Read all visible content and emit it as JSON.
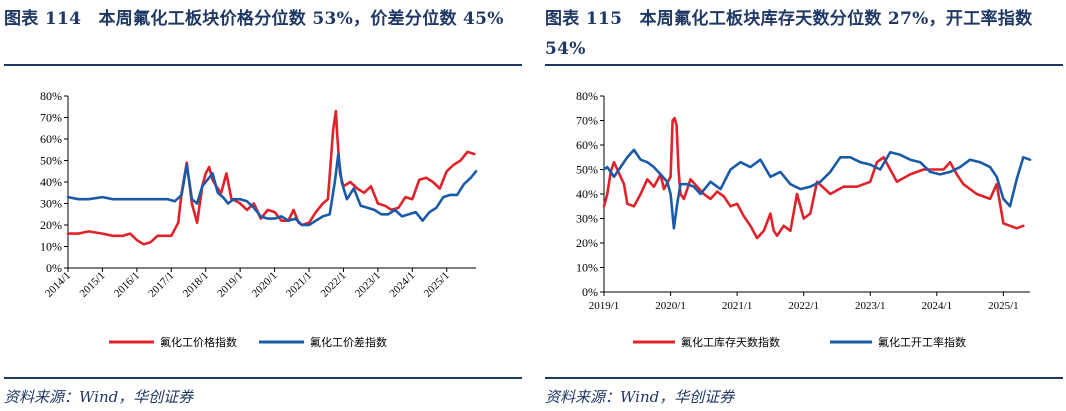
{
  "figures": [
    {
      "title": "图表 114　本周氟化工板块价格分位数 53%，价差分位数 45%",
      "source": "资料来源：Wind，华创证券"
    },
    {
      "title": "图表 115　本周氟化工板块库存天数分位数 27%，开工率指数 54%",
      "source": "资料来源：Wind，华创证券"
    }
  ],
  "chart_data": [
    {
      "type": "line",
      "title": "",
      "xlabel": "",
      "ylabel": "",
      "yticks": [
        "0%",
        "10%",
        "20%",
        "30%",
        "40%",
        "50%",
        "60%",
        "70%",
        "80%"
      ],
      "ylim": [
        0,
        80
      ],
      "xlim": [
        2014.0,
        2025.85
      ],
      "xticks": [
        "2014/1",
        "2015/1",
        "2016/1",
        "2017/1",
        "2018/1",
        "2019/1",
        "2020/1",
        "2021/1",
        "2022/1",
        "2023/1",
        "2024/1",
        "2025/1"
      ],
      "grid": false,
      "legend_position": "bottom",
      "series": [
        {
          "name": "氟化工价格指数",
          "color": "#e0222b",
          "x": [
            2014.0,
            2014.3,
            2014.6,
            2015.0,
            2015.3,
            2015.6,
            2015.8,
            2016.0,
            2016.2,
            2016.4,
            2016.6,
            2016.8,
            2017.0,
            2017.2,
            2017.3,
            2017.45,
            2017.6,
            2017.75,
            2017.9,
            2018.0,
            2018.1,
            2018.2,
            2018.3,
            2018.45,
            2018.6,
            2018.75,
            2018.9,
            2019.0,
            2019.2,
            2019.4,
            2019.6,
            2019.8,
            2020.0,
            2020.2,
            2020.4,
            2020.55,
            2020.7,
            2020.8,
            2021.0,
            2021.2,
            2021.4,
            2021.55,
            2021.7,
            2021.78,
            2021.82,
            2021.9,
            2022.0,
            2022.2,
            2022.4,
            2022.6,
            2022.8,
            2023.0,
            2023.2,
            2023.4,
            2023.6,
            2023.8,
            2024.0,
            2024.2,
            2024.4,
            2024.6,
            2024.8,
            2025.0,
            2025.2,
            2025.4,
            2025.6,
            2025.8
          ],
          "y": [
            16,
            16,
            17,
            16,
            15,
            15,
            16,
            13,
            11,
            12,
            15,
            15,
            15,
            21,
            35,
            49,
            30,
            21,
            38,
            44,
            47,
            41,
            38,
            35,
            44,
            32,
            31,
            30,
            27,
            30,
            23,
            27,
            26,
            22,
            22,
            27,
            21,
            20,
            21,
            26,
            30,
            32,
            64,
            73,
            62,
            44,
            38,
            40,
            37,
            35,
            38,
            30,
            29,
            27,
            28,
            33,
            32,
            41,
            42,
            40,
            37,
            45,
            48,
            50,
            54,
            53
          ]
        },
        {
          "name": "氟化工价差指数",
          "color": "#1a5ba8",
          "x": [
            2014.0,
            2014.3,
            2014.6,
            2015.0,
            2015.3,
            2015.6,
            2016.0,
            2016.3,
            2016.6,
            2016.9,
            2017.1,
            2017.3,
            2017.45,
            2017.6,
            2017.75,
            2017.9,
            2018.0,
            2018.2,
            2018.35,
            2018.5,
            2018.65,
            2018.8,
            2019.0,
            2019.2,
            2019.4,
            2019.6,
            2019.8,
            2020.0,
            2020.2,
            2020.4,
            2020.6,
            2020.8,
            2021.0,
            2021.2,
            2021.4,
            2021.6,
            2021.75,
            2021.85,
            2021.95,
            2022.1,
            2022.3,
            2022.5,
            2022.7,
            2022.9,
            2023.1,
            2023.3,
            2023.5,
            2023.7,
            2023.9,
            2024.1,
            2024.3,
            2024.5,
            2024.7,
            2024.9,
            2025.1,
            2025.3,
            2025.5,
            2025.7,
            2025.85
          ],
          "y": [
            33,
            32,
            32,
            33,
            32,
            32,
            32,
            32,
            32,
            32,
            31,
            34,
            48,
            32,
            30,
            38,
            40,
            44,
            35,
            33,
            30,
            32,
            32,
            31,
            28,
            24,
            23,
            23,
            24,
            22,
            23,
            20,
            20,
            22,
            24,
            25,
            40,
            53,
            40,
            32,
            37,
            29,
            28,
            27,
            25,
            25,
            27,
            24,
            25,
            26,
            22,
            26,
            28,
            33,
            34,
            34,
            39,
            42,
            45
          ]
        }
      ]
    },
    {
      "type": "line",
      "title": "",
      "xlabel": "",
      "ylabel": "",
      "yticks": [
        "0%",
        "10%",
        "20%",
        "30%",
        "40%",
        "50%",
        "60%",
        "70%",
        "80%"
      ],
      "ylim": [
        0,
        80
      ],
      "xlim": [
        2019.0,
        2025.4
      ],
      "xticks": [
        "2019/1",
        "2020/1",
        "2021/1",
        "2022/1",
        "2023/1",
        "2024/1",
        "2025/1"
      ],
      "grid": false,
      "legend_position": "bottom",
      "series": [
        {
          "name": "氟化工库存天数指数",
          "color": "#e0222b",
          "x": [
            2019.0,
            2019.05,
            2019.1,
            2019.15,
            2019.2,
            2019.3,
            2019.35,
            2019.45,
            2019.55,
            2019.65,
            2019.75,
            2019.85,
            2019.9,
            2020.0,
            2020.03,
            2020.06,
            2020.09,
            2020.12,
            2020.15,
            2020.2,
            2020.3,
            2020.4,
            2020.5,
            2020.6,
            2020.7,
            2020.8,
            2020.9,
            2021.0,
            2021.1,
            2021.2,
            2021.3,
            2021.4,
            2021.5,
            2021.55,
            2021.6,
            2021.7,
            2021.8,
            2021.9,
            2022.0,
            2022.1,
            2022.2,
            2022.4,
            2022.6,
            2022.8,
            2023.0,
            2023.1,
            2023.2,
            2023.4,
            2023.6,
            2023.8,
            2024.0,
            2024.1,
            2024.2,
            2024.3,
            2024.4,
            2024.6,
            2024.8,
            2024.9,
            2025.0,
            2025.1,
            2025.2,
            2025.3
          ],
          "y": [
            35,
            40,
            49,
            53,
            50,
            44,
            36,
            35,
            40,
            46,
            43,
            48,
            42,
            47,
            70,
            71,
            68,
            50,
            40,
            38,
            46,
            43,
            40,
            38,
            41,
            39,
            35,
            36,
            31,
            27,
            22,
            25,
            32,
            25,
            23,
            27,
            25,
            40,
            30,
            32,
            45,
            40,
            43,
            43,
            45,
            53,
            55,
            45,
            48,
            50,
            50,
            50,
            53,
            48,
            44,
            40,
            38,
            44,
            28,
            27,
            26,
            27
          ]
        },
        {
          "name": "氟化工开工率指数",
          "color": "#1a5ba8",
          "x": [
            2019.0,
            2019.05,
            2019.15,
            2019.25,
            2019.35,
            2019.45,
            2019.55,
            2019.65,
            2019.75,
            2019.85,
            2019.95,
            2020.0,
            2020.05,
            2020.1,
            2020.15,
            2020.25,
            2020.35,
            2020.45,
            2020.6,
            2020.75,
            2020.9,
            2021.05,
            2021.2,
            2021.35,
            2021.5,
            2021.65,
            2021.8,
            2021.95,
            2022.1,
            2022.25,
            2022.4,
            2022.55,
            2022.7,
            2022.85,
            2023.0,
            2023.15,
            2023.3,
            2023.45,
            2023.6,
            2023.75,
            2023.9,
            2024.05,
            2024.2,
            2024.35,
            2024.5,
            2024.65,
            2024.8,
            2024.9,
            2025.0,
            2025.1,
            2025.2,
            2025.3,
            2025.4
          ],
          "y": [
            50,
            51,
            47,
            51,
            55,
            58,
            54,
            53,
            51,
            48,
            45,
            40,
            26,
            36,
            44,
            44,
            43,
            40,
            45,
            42,
            50,
            53,
            51,
            54,
            47,
            49,
            44,
            42,
            43,
            45,
            49,
            55,
            55,
            53,
            52,
            50,
            57,
            56,
            54,
            53,
            49,
            48,
            49,
            51,
            54,
            53,
            51,
            47,
            38,
            35,
            46,
            55,
            54
          ]
        }
      ]
    }
  ]
}
